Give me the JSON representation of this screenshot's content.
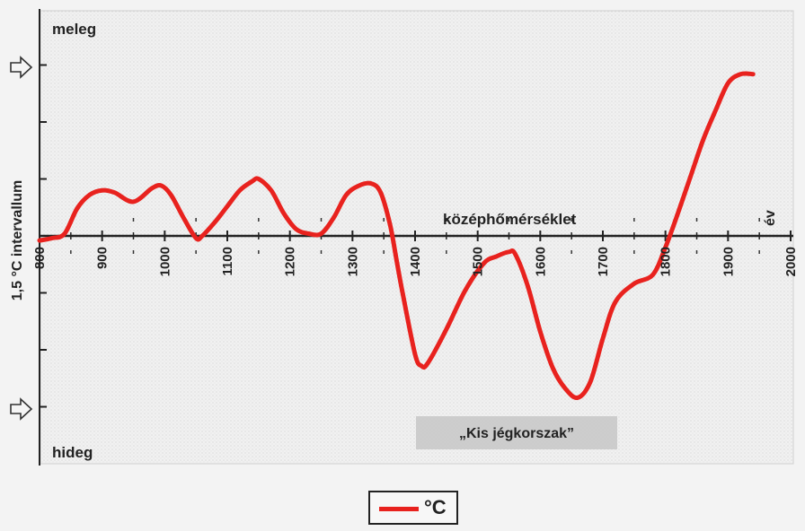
{
  "chart_data": {
    "type": "line",
    "ylabel": "1,5 °C intervallum",
    "ylim": [
      -0.75,
      0.75
    ],
    "xlim": [
      800,
      2000
    ],
    "x_ticks": [
      "800",
      "900",
      "1000",
      "1100",
      "1200",
      "1300",
      "1400",
      "1500",
      "1600",
      "1700",
      "1800",
      "1900",
      "2000"
    ],
    "x_tick_values": [
      800,
      900,
      1000,
      1100,
      1200,
      1300,
      1400,
      1500,
      1600,
      1700,
      1800,
      1900,
      2000
    ],
    "baseline_label": "középhőmérséklet",
    "x_unit_label": "év",
    "top_label": "meleg",
    "bottom_label": "hideg",
    "annotation": "„Kis jégkorszak”",
    "annotation_range": [
      1470,
      1770
    ],
    "line_color": "#e8221e",
    "series": [
      {
        "name": "°C",
        "x": [
          800,
          820,
          840,
          860,
          880,
          900,
          920,
          950,
          980,
          995,
          1010,
          1030,
          1050,
          1060,
          1080,
          1100,
          1120,
          1140,
          1150,
          1170,
          1190,
          1210,
          1230,
          1250,
          1270,
          1290,
          1310,
          1330,
          1345,
          1360,
          1370,
          1380,
          1400,
          1410,
          1420,
          1450,
          1480,
          1510,
          1530,
          1550,
          1560,
          1580,
          1600,
          1620,
          1640,
          1660,
          1680,
          1700,
          1720,
          1750,
          1780,
          1800,
          1820,
          1840,
          1860,
          1880,
          1900,
          1920,
          1940
        ],
        "y": [
          -0.02,
          -0.01,
          0.01,
          0.12,
          0.18,
          0.2,
          0.19,
          0.15,
          0.21,
          0.22,
          0.18,
          0.08,
          -0.01,
          0.0,
          0.06,
          0.13,
          0.2,
          0.24,
          0.25,
          0.2,
          0.1,
          0.03,
          0.01,
          0.01,
          0.08,
          0.18,
          0.22,
          0.23,
          0.19,
          0.05,
          -0.1,
          -0.25,
          -0.52,
          -0.57,
          -0.56,
          -0.41,
          -0.24,
          -0.12,
          -0.09,
          -0.07,
          -0.08,
          -0.22,
          -0.42,
          -0.58,
          -0.67,
          -0.71,
          -0.64,
          -0.45,
          -0.29,
          -0.21,
          -0.17,
          -0.05,
          0.1,
          0.26,
          0.42,
          0.55,
          0.67,
          0.71,
          0.71
        ]
      }
    ],
    "legend": {
      "label": "°C",
      "position": "bottom-center"
    }
  }
}
